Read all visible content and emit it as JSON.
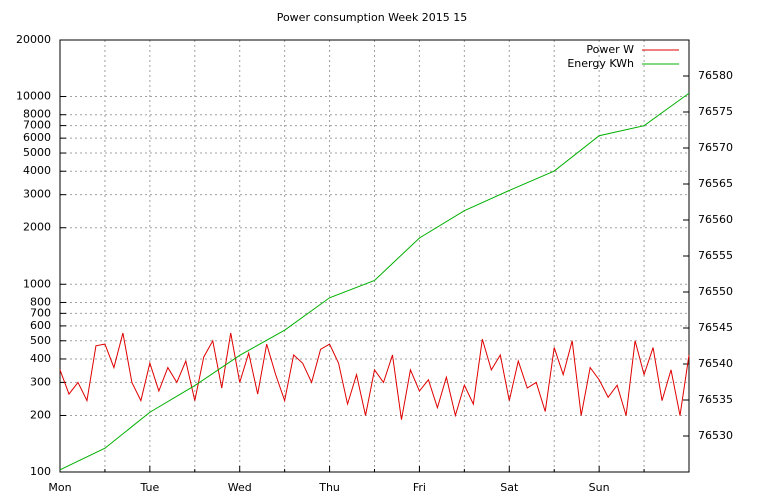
{
  "chart_data": {
    "type": "line",
    "title": "Power consumption Week 2015 15",
    "xlim": [
      0,
      7
    ],
    "xticks": [
      {
        "value": 0,
        "label": "Mon"
      },
      {
        "value": 1,
        "label": "Tue"
      },
      {
        "value": 2,
        "label": "Wed"
      },
      {
        "value": 3,
        "label": "Thu"
      },
      {
        "value": 4,
        "label": "Fri"
      },
      {
        "value": 5,
        "label": "Sat"
      },
      {
        "value": 6,
        "label": "Sun"
      }
    ],
    "xminor_ticks": [
      0.5,
      1.5,
      2.5,
      3.5,
      4.5,
      5.5,
      6.5
    ],
    "ylim": [
      100,
      20000
    ],
    "log_scale": true,
    "yticks": [
      100,
      200,
      300,
      400,
      500,
      600,
      700,
      800,
      1000,
      2000,
      3000,
      4000,
      5000,
      6000,
      7000,
      8000,
      10000,
      20000
    ],
    "y2lim": [
      76525,
      76585
    ],
    "y2ticks": [
      76530,
      76535,
      76540,
      76545,
      76550,
      76555,
      76560,
      76565,
      76570,
      76575,
      76580
    ],
    "grid": true,
    "legend": "top-right",
    "series": [
      {
        "name": "Power W",
        "color": "#e00000",
        "x": [
          0,
          0.1,
          0.2,
          0.3,
          0.4,
          0.5,
          0.6,
          0.7,
          0.8,
          0.9,
          1,
          1.1,
          1.2,
          1.3,
          1.4,
          1.5,
          1.6,
          1.7,
          1.8,
          1.9,
          2,
          2.1,
          2.2,
          2.3,
          2.4,
          2.5,
          2.6,
          2.7,
          2.8,
          2.9,
          3,
          3.1,
          3.2,
          3.3,
          3.4,
          3.5,
          3.6,
          3.7,
          3.8,
          3.9,
          4,
          4.1,
          4.2,
          4.3,
          4.4,
          4.5,
          4.6,
          4.7,
          4.8,
          4.9,
          5,
          5.1,
          5.2,
          5.3,
          5.4,
          5.5,
          5.6,
          5.7,
          5.8,
          5.9,
          6,
          6.1,
          6.2,
          6.3,
          6.4,
          6.5,
          6.6,
          6.7,
          6.8,
          6.9,
          7
        ],
        "values": [
          350,
          260,
          300,
          240,
          470,
          480,
          360,
          550,
          300,
          240,
          380,
          270,
          360,
          300,
          390,
          240,
          410,
          500,
          280,
          550,
          300,
          430,
          260,
          480,
          330,
          240,
          420,
          380,
          300,
          450,
          480,
          380,
          230,
          330,
          200,
          350,
          300,
          420,
          190,
          350,
          270,
          310,
          220,
          320,
          200,
          290,
          230,
          510,
          350,
          420,
          240,
          390,
          280,
          300,
          210,
          460,
          330,
          500,
          200,
          360,
          310,
          250,
          290,
          200,
          500,
          330,
          460,
          240,
          350,
          200,
          420
        ]
      },
      {
        "name": "Energy KWh",
        "color": "#00b000",
        "axis": "y2",
        "x": [
          0,
          0.5,
          1,
          1.5,
          2,
          2.5,
          3,
          3.5,
          4,
          4.5,
          5,
          5.5,
          6,
          6.5,
          7
        ],
        "values": [
          76525.3,
          76528.3,
          76533.3,
          76537.0,
          76541.2,
          76544.7,
          76549.2,
          76551.6,
          76557.5,
          76561.3,
          76564.1,
          76566.8,
          76571.7,
          76573.1,
          76577.6
        ]
      }
    ]
  }
}
